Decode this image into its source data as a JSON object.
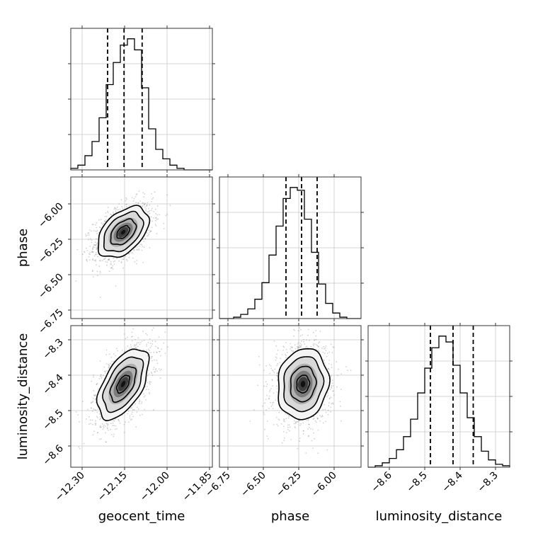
{
  "chart_data": {
    "type": "corner",
    "grid": true,
    "parameters": [
      {
        "name": "geocent_time",
        "label": "geocent_time",
        "lim": [
          -12.34,
          -11.84
        ],
        "ticks": [
          -12.3,
          -12.15,
          -12.0,
          -11.85
        ],
        "tick_labels": [
          "−12.30",
          "−12.15",
          "−12.00",
          "−11.85"
        ],
        "quantiles": [
          -12.21,
          -12.152,
          -12.088
        ],
        "hist": {
          "edges": [
            -12.34,
            -12.315,
            -12.29,
            -12.265,
            -12.24,
            -12.215,
            -12.19,
            -12.165,
            -12.14,
            -12.115,
            -12.09,
            -12.065,
            -12.04,
            -12.015,
            -11.99,
            -11.965,
            -11.94,
            -11.915,
            -11.89,
            -11.865,
            -11.84
          ],
          "counts": [
            0.01,
            0.03,
            0.09,
            0.18,
            0.33,
            0.54,
            0.68,
            0.79,
            0.83,
            0.76,
            0.52,
            0.26,
            0.13,
            0.07,
            0.03,
            0.01,
            0.0,
            0.0,
            0.0,
            0.0
          ]
        }
      },
      {
        "name": "phase",
        "label": "phase",
        "lim": [
          -6.81,
          -5.81
        ],
        "ticks": [
          -6.75,
          -6.5,
          -6.25,
          -6.0
        ],
        "tick_labels": [
          "−6.75",
          "−6.50",
          "−6.25",
          "−6.00"
        ],
        "quantiles": [
          -6.34,
          -6.23,
          -6.12
        ],
        "hist": {
          "edges": [
            -6.81,
            -6.76,
            -6.71,
            -6.66,
            -6.61,
            -6.56,
            -6.51,
            -6.46,
            -6.41,
            -6.36,
            -6.31,
            -6.26,
            -6.21,
            -6.16,
            -6.11,
            -6.06,
            -6.01,
            -5.96,
            -5.91,
            -5.86,
            -5.81
          ],
          "counts": [
            0.0,
            0.0,
            0.01,
            0.03,
            0.07,
            0.14,
            0.26,
            0.46,
            0.67,
            0.87,
            0.95,
            0.93,
            0.72,
            0.48,
            0.25,
            0.11,
            0.04,
            0.01,
            0.0,
            0.0
          ]
        }
      },
      {
        "name": "luminosity_distance",
        "label": "luminosity_distance",
        "lim": [
          -8.66,
          -8.26
        ],
        "ticks": [
          -8.6,
          -8.5,
          -8.4,
          -8.3
        ],
        "tick_labels": [
          "−8.6",
          "−8.5",
          "−8.4",
          "−8.3"
        ],
        "quantiles": [
          -8.484,
          -8.42,
          -8.363
        ],
        "hist": {
          "edges": [
            -8.66,
            -8.64,
            -8.62,
            -8.6,
            -8.58,
            -8.56,
            -8.54,
            -8.52,
            -8.5,
            -8.48,
            -8.46,
            -8.44,
            -8.42,
            -8.4,
            -8.38,
            -8.36,
            -8.34,
            -8.32,
            -8.3,
            -8.28,
            -8.26
          ],
          "counts": [
            0.0,
            0.01,
            0.03,
            0.06,
            0.12,
            0.21,
            0.33,
            0.51,
            0.68,
            0.82,
            0.9,
            0.86,
            0.7,
            0.51,
            0.34,
            0.21,
            0.11,
            0.05,
            0.02,
            0.01
          ]
        }
      }
    ],
    "pairs": [
      {
        "x": "geocent_time",
        "y": "phase",
        "mean": [
          -12.155,
          -6.2
        ],
        "std": [
          0.045,
          0.09
        ],
        "corr": 0.45
      },
      {
        "x": "geocent_time",
        "y": "luminosity_distance",
        "mean": [
          -12.155,
          -8.425
        ],
        "std": [
          0.045,
          0.05
        ],
        "corr": 0.55
      },
      {
        "x": "phase",
        "y": "luminosity_distance",
        "mean": [
          -6.22,
          -8.425
        ],
        "std": [
          0.09,
          0.05
        ],
        "corr": 0.1
      }
    ]
  }
}
